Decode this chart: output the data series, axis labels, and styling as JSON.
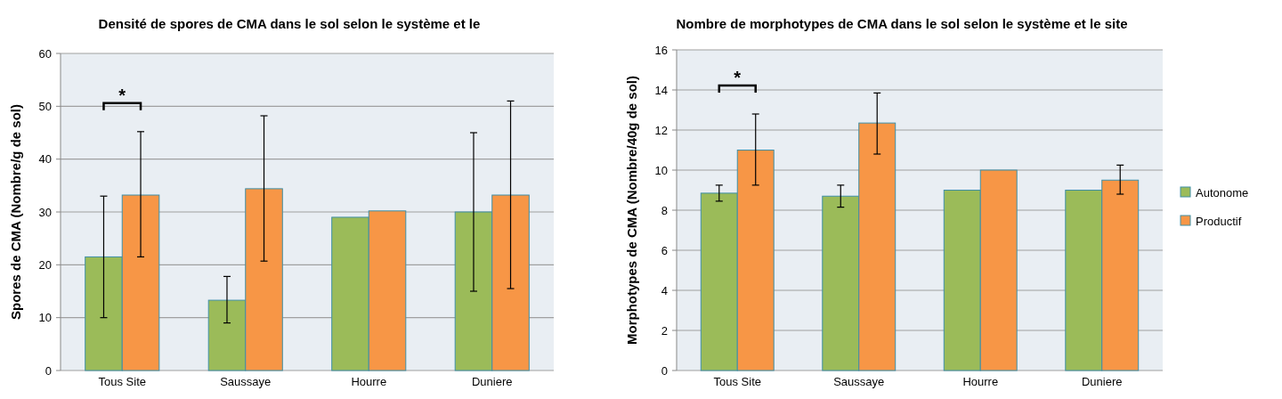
{
  "chart_data": [
    {
      "type": "bar",
      "title": "Densité de spores de CMA dans le sol selon le système et le",
      "ylabel": "Spores de CMA (Nombre/g de sol)",
      "categories": [
        "Tous Site",
        "Saussaye",
        "Hourre",
        "Duniere"
      ],
      "ylim": [
        0,
        60
      ],
      "yticks": [
        0,
        10,
        20,
        30,
        40,
        50,
        60
      ],
      "grid": "y",
      "legend": false,
      "series": [
        {
          "color": "#9bbb59",
          "values": [
            21.5,
            13.3,
            29,
            30
          ],
          "errors": [
            [
              10,
              33
            ],
            [
              9,
              17.8
            ],
            null,
            [
              15,
              45
            ]
          ]
        },
        {
          "color": "#f79646",
          "values": [
            33.2,
            34.4,
            30.2,
            33.2
          ],
          "errors": [
            [
              21.5,
              45.2
            ],
            [
              20.7,
              48.2
            ],
            null,
            [
              15.5,
              51
            ]
          ]
        }
      ],
      "annotations": [
        "*"
      ]
    },
    {
      "type": "bar",
      "title": "Nombre de morphotypes de CMA dans le sol selon le système et le site",
      "ylabel": "Morphotypes de CMA (Nombre/40g de sol)",
      "categories": [
        "Tous Site",
        "Saussaye",
        "Hourre",
        "Duniere"
      ],
      "ylim": [
        0,
        16
      ],
      "yticks": [
        0,
        2,
        4,
        6,
        8,
        10,
        12,
        14,
        16
      ],
      "grid": "y",
      "legend": "right",
      "series": [
        {
          "name": "Autonome",
          "color": "#9bbb59",
          "values": [
            8.85,
            8.7,
            9,
            9
          ],
          "errors": [
            [
              8.45,
              9.25
            ],
            [
              8.15,
              9.25
            ],
            null,
            null
          ]
        },
        {
          "name": "Productif",
          "color": "#f79646",
          "values": [
            11,
            12.35,
            10,
            9.5
          ],
          "errors": [
            [
              9.25,
              12.8
            ],
            [
              10.8,
              13.85
            ],
            null,
            [
              8.8,
              10.25
            ]
          ]
        }
      ],
      "annotations": [
        "*"
      ]
    }
  ]
}
